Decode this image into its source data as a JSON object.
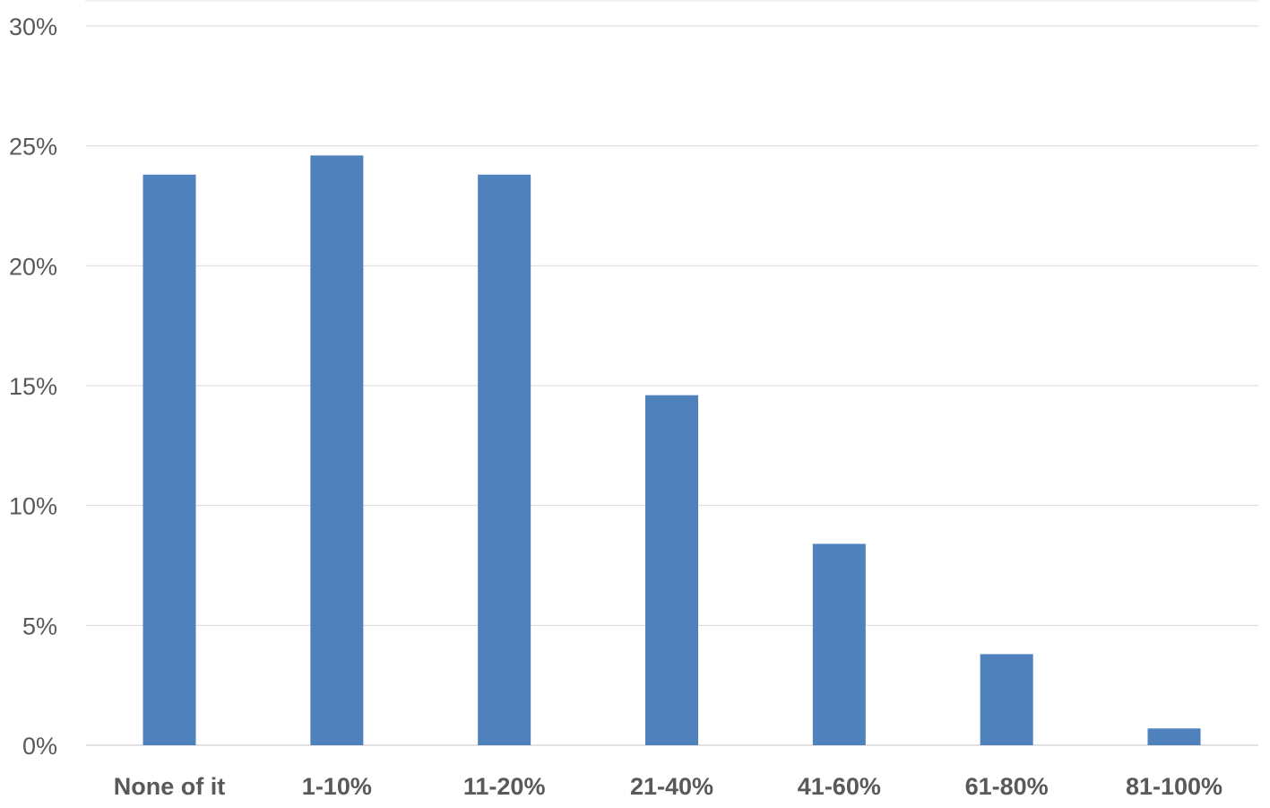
{
  "chart_data": {
    "type": "bar",
    "categories": [
      "None of it",
      "1-10%",
      "11-20%",
      "21-40%",
      "41-60%",
      "61-80%",
      "81-100%"
    ],
    "values": [
      23.8,
      24.6,
      23.8,
      14.6,
      8.4,
      3.8,
      0.7
    ],
    "y_ticks": [
      "0%",
      "5%",
      "10%",
      "15%",
      "20%",
      "25%",
      "30%"
    ],
    "ylim": [
      0,
      30
    ],
    "ytick_step": 5,
    "value_unit": "%",
    "grid": true,
    "legend": "none",
    "bar_color": "#4f81bd"
  }
}
